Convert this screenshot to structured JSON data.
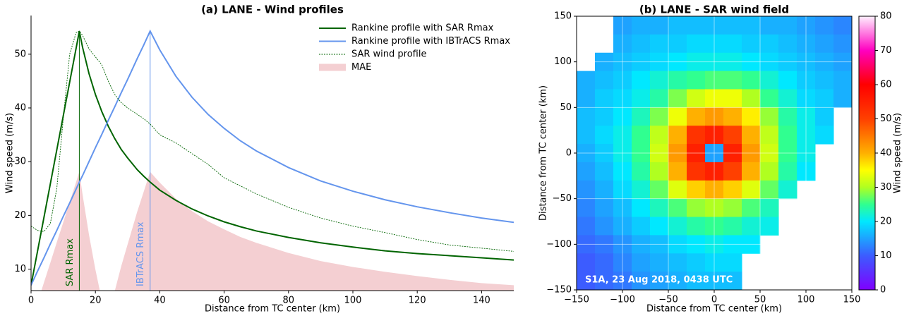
{
  "chart_data": [
    {
      "type": "line",
      "title": "(a) LANE - Wind profiles",
      "xlabel": "Distance from TC center (km)",
      "ylabel": "Wind speed (m/s)",
      "x": [
        0,
        2,
        4,
        6,
        8,
        10,
        12,
        14,
        15,
        16,
        18,
        20,
        22,
        24,
        26,
        28,
        30,
        33,
        35,
        37,
        40,
        45,
        50,
        55,
        60,
        65,
        70,
        80,
        90,
        100,
        110,
        120,
        130,
        140,
        150
      ],
      "series": [
        {
          "name": "Rankine profile with SAR Rmax",
          "color": "#006400",
          "kind": "line",
          "dashed": false,
          "values": [
            7,
            13.3,
            19.6,
            25.9,
            32.2,
            38.5,
            44.8,
            51.1,
            54.3,
            51.3,
            46.4,
            42.5,
            39.3,
            36.6,
            34.3,
            32.3,
            30.7,
            28.5,
            27.3,
            26.2,
            24.7,
            22.8,
            21.2,
            19.9,
            18.8,
            17.9,
            17.1,
            15.9,
            14.9,
            14.1,
            13.4,
            12.9,
            12.5,
            12.1,
            11.7
          ]
        },
        {
          "name": "Rankine profile with IBTrACS Rmax",
          "color": "#6495ed",
          "kind": "line",
          "dashed": false,
          "values": [
            7,
            9.6,
            12.1,
            14.7,
            17.2,
            19.8,
            22.3,
            24.9,
            26.2,
            27.4,
            30.0,
            32.6,
            35.1,
            37.7,
            40.2,
            42.8,
            45.3,
            49.2,
            51.7,
            54.3,
            50.8,
            45.9,
            42.0,
            38.8,
            36.2,
            33.9,
            32.0,
            28.9,
            26.4,
            24.5,
            22.9,
            21.6,
            20.5,
            19.5,
            18.7
          ]
        },
        {
          "name": "SAR wind profile",
          "color": "#006400",
          "kind": "line",
          "dashed": true,
          "values": [
            18,
            17.2,
            17.0,
            18.5,
            25,
            38,
            50,
            54,
            54.3,
            53.5,
            51,
            49.5,
            48,
            45,
            42.5,
            41,
            40,
            38.8,
            38,
            37,
            35,
            33.5,
            31.5,
            29.5,
            27,
            25.5,
            24,
            21.5,
            19.5,
            18,
            16.8,
            15.5,
            14.5,
            13.9,
            13.3
          ]
        },
        {
          "name": "MAE",
          "color": "#f4cfd2",
          "kind": "area",
          "dashed": false,
          "values": [
            0,
            3.7,
            7.5,
            11.2,
            15.0,
            18.7,
            22.5,
            26.2,
            28.1,
            23.9,
            16.4,
            9.9,
            4.2,
            1.1,
            5.9,
            10.5,
            14.6,
            20.7,
            24.4,
            28.1,
            26.1,
            23.1,
            20.8,
            18.9,
            17.4,
            16.0,
            14.9,
            13.0,
            11.5,
            10.4,
            9.5,
            8.7,
            8.0,
            7.4,
            7.0
          ]
        }
      ],
      "xlim": [
        0,
        150
      ],
      "ylim": [
        6,
        57.2
      ],
      "xticks": [
        0,
        20,
        40,
        60,
        80,
        100,
        120,
        140
      ],
      "yticks": [
        10,
        20,
        30,
        40,
        50
      ],
      "legend": "upper right",
      "annotations": [
        {
          "text": "SAR Rmax",
          "x": 15,
          "color": "#006400"
        },
        {
          "text": "IBTrACS Rmax",
          "x": 37,
          "color": "#6495ed"
        }
      ]
    },
    {
      "type": "heatmap",
      "title": "(b) LANE - SAR wind field",
      "xlabel": "Distance from TC center (km)",
      "ylabel": "Distance from TC center (km)",
      "x": [
        -140,
        -120,
        -100,
        -80,
        -60,
        -40,
        -20,
        0,
        20,
        40,
        60,
        80,
        100,
        120,
        140
      ],
      "y": [
        140,
        120,
        100,
        80,
        60,
        40,
        20,
        0,
        -20,
        -40,
        -60,
        -80,
        -100,
        -120,
        -140
      ],
      "values": [
        [
          null,
          null,
          15,
          16,
          16,
          17,
          17,
          17,
          17,
          17,
          16,
          16,
          15,
          14,
          13
        ],
        [
          null,
          null,
          16,
          17,
          18,
          18,
          19,
          19,
          19,
          18,
          18,
          17,
          16,
          15,
          14
        ],
        [
          null,
          16,
          17,
          18,
          19,
          20,
          21,
          21,
          21,
          20,
          19,
          18,
          17,
          16,
          15
        ],
        [
          16,
          17,
          18,
          20,
          22,
          24,
          25,
          26,
          26,
          25,
          22,
          20,
          18,
          17,
          16
        ],
        [
          16,
          18,
          19,
          21,
          24,
          28,
          32,
          34,
          34,
          30,
          25,
          22,
          19,
          18,
          16
        ],
        [
          17,
          18,
          20,
          23,
          28,
          34,
          40,
          42,
          40,
          36,
          29,
          24,
          21,
          18,
          null
        ],
        [
          17,
          19,
          21,
          25,
          31,
          40,
          52,
          55,
          50,
          40,
          31,
          25,
          21,
          19,
          null
        ],
        [
          16,
          18,
          21,
          25,
          32,
          42,
          55,
          15,
          55,
          42,
          32,
          25,
          21,
          null,
          null
        ],
        [
          15,
          17,
          20,
          24,
          30,
          40,
          52,
          55,
          50,
          40,
          30,
          24,
          20,
          null,
          null
        ],
        [
          14,
          16,
          19,
          22,
          27,
          33,
          38,
          40,
          38,
          33,
          27,
          22,
          null,
          null,
          null
        ],
        [
          13,
          15,
          17,
          20,
          23,
          26,
          29,
          30,
          29,
          26,
          23,
          null,
          null,
          null,
          null
        ],
        [
          12,
          14,
          16,
          18,
          20,
          22,
          24,
          25,
          24,
          22,
          21,
          null,
          null,
          null,
          null
        ],
        [
          11,
          12,
          14,
          16,
          17,
          19,
          20,
          21,
          20,
          20,
          null,
          null,
          null,
          null,
          null
        ],
        [
          10,
          11,
          13,
          15,
          16,
          17,
          18,
          19,
          19,
          null,
          null,
          null,
          null,
          null,
          null
        ],
        [
          10,
          11,
          12,
          14,
          15,
          16,
          17,
          17,
          17,
          null,
          null,
          null,
          null,
          null,
          null
        ]
      ],
      "xlim": [
        -150,
        150
      ],
      "ylim": [
        -150,
        150
      ],
      "xticks": [
        {
          "value": -150,
          "label": "−150"
        },
        {
          "value": -100,
          "label": "−100"
        },
        {
          "value": -50,
          "label": "−50"
        },
        0,
        50,
        100,
        150
      ],
      "yticks": [
        {
          "value": -150,
          "label": "−150"
        },
        {
          "value": -100,
          "label": "−100"
        },
        {
          "value": -50,
          "label": "−50"
        },
        0,
        50,
        100,
        150
      ],
      "grid": true,
      "colorbar_label": "Wind speed (m/s)",
      "clim": [
        0,
        80
      ],
      "cticks": [
        0,
        10,
        20,
        30,
        40,
        50,
        60,
        70,
        80
      ],
      "colormap": [
        [
          0,
          "#7f00ff"
        ],
        [
          10,
          "#3c5cff"
        ],
        [
          20,
          "#00e8ff"
        ],
        [
          25,
          "#30ff90"
        ],
        [
          30,
          "#b0ff20"
        ],
        [
          35,
          "#ffff00"
        ],
        [
          40,
          "#ffb000"
        ],
        [
          50,
          "#ff4000"
        ],
        [
          60,
          "#ff0000"
        ],
        [
          70,
          "#ff00c0"
        ],
        [
          80,
          "#fff0ff"
        ]
      ],
      "annotation": "S1A, 23 Aug 2018, 0438 UTC"
    }
  ]
}
